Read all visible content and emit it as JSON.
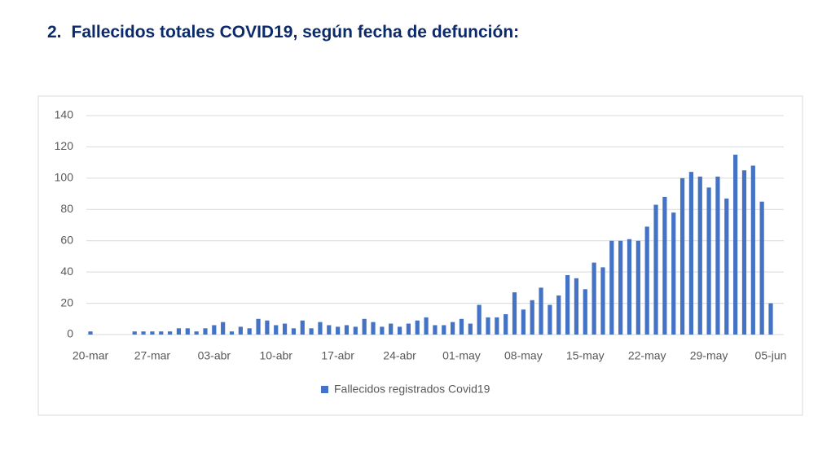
{
  "heading": {
    "number": "2.",
    "title": "Fallecidos totales COVID19, según fecha de defunción:"
  },
  "chart_data": {
    "type": "bar",
    "categories": [
      "20-mar",
      null,
      null,
      null,
      null,
      null,
      null,
      "27-mar",
      null,
      null,
      null,
      null,
      null,
      null,
      "03-abr",
      null,
      null,
      null,
      null,
      null,
      null,
      "10-abr",
      null,
      null,
      null,
      null,
      null,
      null,
      "17-abr",
      null,
      null,
      null,
      null,
      null,
      null,
      "24-abr",
      null,
      null,
      null,
      null,
      null,
      null,
      "01-may",
      null,
      null,
      null,
      null,
      null,
      null,
      "08-may",
      null,
      null,
      null,
      null,
      null,
      null,
      "15-may",
      null,
      null,
      null,
      null,
      null,
      null,
      "22-may",
      null,
      null,
      null,
      null,
      null,
      null,
      "29-may",
      null,
      null,
      null,
      null,
      null,
      null,
      "05-jun"
    ],
    "series": [
      {
        "name": "Fallecidos registrados Covid19",
        "color": "#4472c4",
        "values": [
          2,
          0,
          0,
          0,
          0,
          2,
          2,
          2,
          2,
          2,
          4,
          4,
          2,
          4,
          6,
          8,
          2,
          5,
          4,
          10,
          9,
          6,
          7,
          4,
          9,
          4,
          8,
          6,
          5,
          6,
          5,
          10,
          8,
          5,
          7,
          5,
          7,
          9,
          11,
          6,
          6,
          8,
          10,
          7,
          19,
          11,
          11,
          13,
          27,
          16,
          22,
          30,
          19,
          25,
          38,
          36,
          29,
          46,
          43,
          60,
          60,
          61,
          60,
          69,
          83,
          88,
          78,
          100,
          104,
          101,
          94,
          101,
          87,
          115,
          105,
          108,
          85,
          20
        ]
      }
    ],
    "ylim": [
      0,
      140
    ],
    "yticks": [
      0,
      20,
      40,
      60,
      80,
      100,
      120,
      140
    ],
    "grid": true,
    "legend": "bottom"
  }
}
